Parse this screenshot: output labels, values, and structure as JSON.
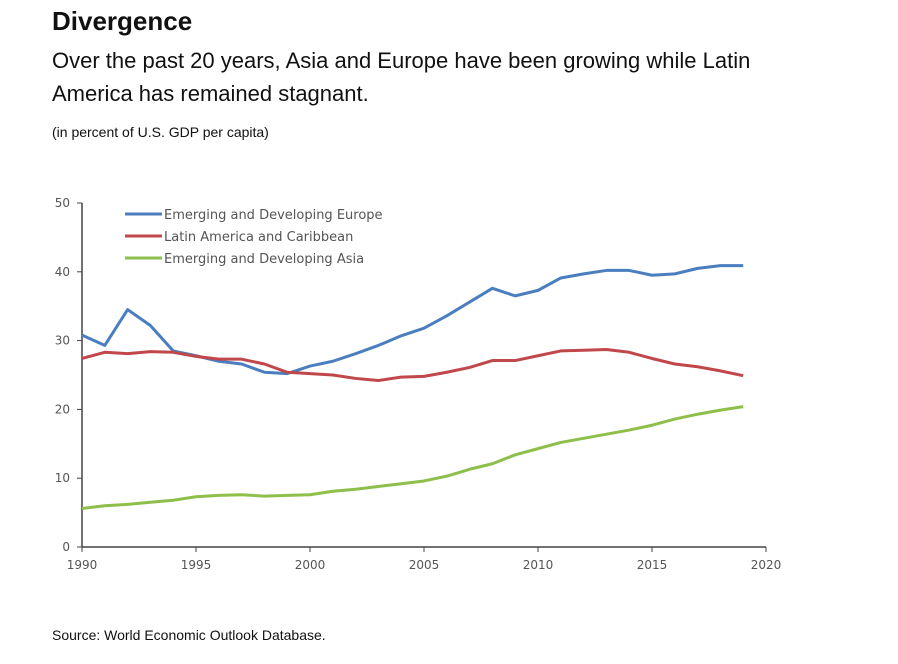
{
  "header": {
    "title": "Divergence",
    "subtitle": "Over the past 20 years, Asia and Europe have been growing while Latin America has remained stagnant.",
    "unit_note": "(in percent of U.S. GDP per capita)"
  },
  "footer": {
    "source": "Source: World Economic Outlook Database."
  },
  "chart_data": {
    "type": "line",
    "title": "Divergence",
    "xlabel": "",
    "ylabel": "in percent of U.S. GDP per capita",
    "xlim": [
      1990,
      2020
    ],
    "ylim": [
      0,
      50
    ],
    "xticks": [
      1990,
      1995,
      2000,
      2005,
      2010,
      2015,
      2020
    ],
    "yticks": [
      0,
      10,
      20,
      30,
      40,
      50
    ],
    "grid": false,
    "legend_position": "top-left",
    "x": [
      1990,
      1991,
      1992,
      1993,
      1994,
      1995,
      1996,
      1997,
      1998,
      1999,
      2000,
      2001,
      2002,
      2003,
      2004,
      2005,
      2006,
      2007,
      2008,
      2009,
      2010,
      2011,
      2012,
      2013,
      2014,
      2015,
      2016,
      2017,
      2018,
      2019
    ],
    "series": [
      {
        "name": "Emerging and Developing Europe",
        "color": "#4a7ebf",
        "values": [
          30.8,
          29.3,
          34.5,
          32.2,
          28.5,
          27.8,
          27.0,
          26.6,
          25.4,
          25.2,
          26.3,
          27.0,
          28.1,
          29.3,
          30.7,
          31.8,
          33.6,
          35.6,
          37.6,
          36.5,
          37.3,
          39.1,
          39.7,
          40.2,
          40.2,
          39.5,
          39.7,
          40.5,
          40.9,
          40.9
        ]
      },
      {
        "name": "Latin America and Caribbean",
        "color": "#c0474a",
        "values": [
          27.4,
          28.3,
          28.1,
          28.4,
          28.3,
          27.7,
          27.3,
          27.3,
          26.6,
          25.4,
          25.2,
          25.0,
          24.5,
          24.2,
          24.7,
          24.8,
          25.4,
          26.1,
          27.1,
          27.1,
          27.8,
          28.5,
          28.6,
          28.7,
          28.3,
          27.4,
          26.6,
          26.2,
          25.6,
          24.9
        ]
      },
      {
        "name": "Emerging and Developing Asia",
        "color": "#8dbf4a",
        "values": [
          5.6,
          6.0,
          6.2,
          6.5,
          6.8,
          7.3,
          7.5,
          7.6,
          7.4,
          7.5,
          7.6,
          8.1,
          8.4,
          8.8,
          9.2,
          9.6,
          10.3,
          11.3,
          12.1,
          13.4,
          14.3,
          15.2,
          15.8,
          16.4,
          17.0,
          17.7,
          18.6,
          19.3,
          19.9,
          20.4
        ]
      }
    ]
  }
}
